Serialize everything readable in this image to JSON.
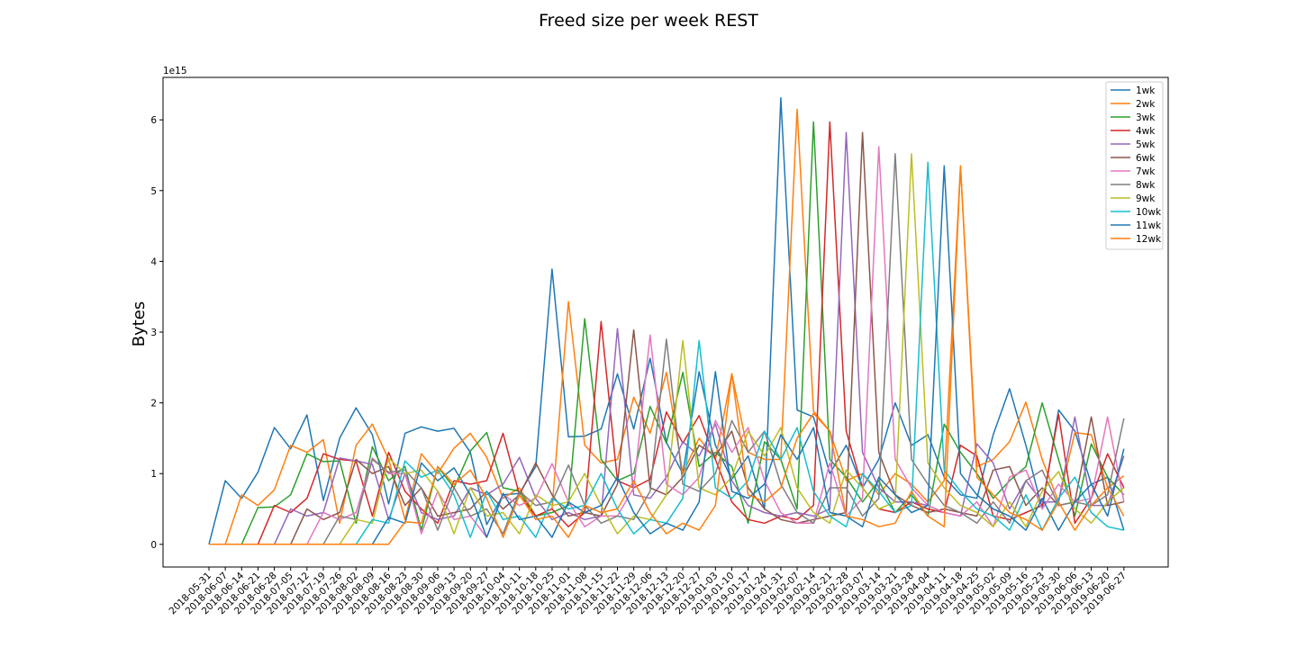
{
  "chart_data": {
    "type": "line",
    "title": "Freed size per week REST",
    "xlabel": "",
    "ylabel": "Bytes",
    "y_scale_label": "1e15",
    "y_scale": 1000000000000000.0,
    "ylim": [
      -0.32,
      6.6
    ],
    "yticks": [
      0,
      1,
      2,
      3,
      4,
      5,
      6
    ],
    "grid": false,
    "legend_position": "top-right",
    "x": [
      "2018-05-31",
      "2018-06-07",
      "2018-06-14",
      "2018-06-21",
      "2018-06-28",
      "2018-07-05",
      "2018-07-12",
      "2018-07-19",
      "2018-07-26",
      "2018-08-02",
      "2018-08-09",
      "2018-08-16",
      "2018-08-23",
      "2018-08-30",
      "2018-09-06",
      "2018-09-13",
      "2018-09-20",
      "2018-09-27",
      "2018-10-04",
      "2018-10-11",
      "2018-10-18",
      "2018-10-25",
      "2018-11-01",
      "2018-11-08",
      "2018-11-15",
      "2018-11-22",
      "2018-11-29",
      "2018-12-06",
      "2018-12-13",
      "2018-12-20",
      "2018-12-27",
      "2019-01-03",
      "2019-01-10",
      "2019-01-17",
      "2019-01-24",
      "2019-01-31",
      "2019-02-07",
      "2019-02-14",
      "2019-02-21",
      "2019-02-28",
      "2019-03-07",
      "2019-03-14",
      "2019-03-21",
      "2019-03-28",
      "2019-04-04",
      "2019-04-11",
      "2019-04-18",
      "2019-04-25",
      "2019-05-02",
      "2019-05-09",
      "2019-05-16",
      "2019-05-23",
      "2019-05-30",
      "2019-06-06",
      "2019-06-13",
      "2019-06-20",
      "2019-06-27"
    ],
    "series": [
      {
        "name": "1wk",
        "color": "#1f77b4",
        "values": [
          0,
          0.9,
          0.65,
          1.02,
          1.65,
          1.35,
          1.83,
          0.62,
          1.5,
          1.93,
          1.55,
          0.57,
          1.57,
          1.66,
          1.6,
          1.64,
          1.3,
          0.28,
          0.7,
          0.72,
          1.1,
          3.89,
          1.52,
          1.53,
          1.63,
          2.41,
          1.63,
          2.63,
          1.44,
          1.0,
          2.44,
          1.4,
          0.92,
          1.25,
          0.5,
          6.31,
          1.9,
          1.8,
          1.0,
          1.4,
          0.8,
          1.2,
          2.0,
          1.4,
          1.55,
          0.95,
          0.7,
          0.65,
          1.55,
          2.2,
          1.4,
          0.5,
          1.9,
          1.6,
          0.85,
          0.95,
          0.2
        ]
      },
      {
        "name": "2wk",
        "color": "#ff7f0e",
        "values": [
          0,
          0,
          0.7,
          0.55,
          0.77,
          1.4,
          1.3,
          1.48,
          0.3,
          1.4,
          1.7,
          1.2,
          0.35,
          1.28,
          1.0,
          1.36,
          1.57,
          1.23,
          0.65,
          0.8,
          0.4,
          0.5,
          3.43,
          1.4,
          1.15,
          1.2,
          2.08,
          1.57,
          2.43,
          1.0,
          1.5,
          1.2,
          2.41,
          1.3,
          1.2,
          1.2,
          6.15,
          1.88,
          1.6,
          0.9,
          1.0,
          0.7,
          1.0,
          0.85,
          0.6,
          0.9,
          5.35,
          1.1,
          1.2,
          1.45,
          2.01,
          1.2,
          0.6,
          1.58,
          1.55,
          0.8,
          0.97
        ]
      },
      {
        "name": "3wk",
        "color": "#2ca02c",
        "values": [
          0,
          0,
          0,
          0.52,
          0.53,
          0.7,
          1.28,
          1.17,
          1.18,
          0.3,
          1.38,
          0.9,
          1.1,
          0.2,
          1.1,
          0.8,
          1.32,
          1.58,
          0.8,
          0.75,
          0.4,
          0.45,
          0.55,
          3.19,
          1.2,
          0.9,
          1.0,
          1.95,
          1.43,
          2.43,
          1.1,
          1.3,
          1.1,
          0.3,
          1.45,
          1.2,
          0.5,
          5.97,
          1.2,
          0.95,
          0.6,
          0.9,
          0.45,
          0.7,
          0.4,
          1.7,
          1.3,
          1.0,
          0.65,
          0.9,
          1.1,
          2.0,
          1.2,
          0.4,
          1.42,
          0.95,
          0.7
        ]
      },
      {
        "name": "4wk",
        "color": "#d62728",
        "values": [
          0,
          0,
          0,
          0,
          0.55,
          0.45,
          0.65,
          1.28,
          1.2,
          1.18,
          0.4,
          1.3,
          0.75,
          0.5,
          0.3,
          0.9,
          0.85,
          0.9,
          1.57,
          0.7,
          0.4,
          0.5,
          0.25,
          0.45,
          3.15,
          0.9,
          0.8,
          0.92,
          1.87,
          1.43,
          1.82,
          1.2,
          0.6,
          0.35,
          0.3,
          0.4,
          0.35,
          0.55,
          5.97,
          1.6,
          0.8,
          0.5,
          0.45,
          0.6,
          0.5,
          0.45,
          1.4,
          1.25,
          0.4,
          0.35,
          0.45,
          0.55,
          1.84,
          0.3,
          0.65,
          1.28,
          0.8
        ]
      },
      {
        "name": "5wk",
        "color": "#9467bd",
        "values": [
          0,
          0,
          0,
          0,
          0,
          0.5,
          0.4,
          0.45,
          1.22,
          1.18,
          1.13,
          0.35,
          1.0,
          0.45,
          0.35,
          0.4,
          0.8,
          0.7,
          0.85,
          1.23,
          0.65,
          0.35,
          0.45,
          0.35,
          0.4,
          3.05,
          0.7,
          0.65,
          0.95,
          1.45,
          1.25,
          1.7,
          0.9,
          0.55,
          0.45,
          0.4,
          0.45,
          0.4,
          0.5,
          5.82,
          1.3,
          0.8,
          0.6,
          0.6,
          0.55,
          0.45,
          0.4,
          1.42,
          1.15,
          0.5,
          0.9,
          0.6,
          0.6,
          1.8,
          0.55,
          0.55,
          1.25
        ]
      },
      {
        "name": "6wk",
        "color": "#8c564b",
        "values": [
          0,
          0,
          0,
          0,
          0,
          0,
          0.5,
          0.35,
          0.45,
          1.2,
          1.0,
          1.1,
          0.55,
          0.8,
          0.4,
          0.45,
          0.5,
          0.75,
          0.5,
          0.7,
          1.15,
          0.7,
          0.4,
          0.45,
          0.4,
          0.85,
          3.03,
          0.8,
          0.7,
          0.95,
          1.4,
          1.25,
          1.6,
          0.8,
          0.5,
          0.35,
          0.3,
          0.35,
          0.4,
          0.45,
          5.82,
          1.3,
          0.7,
          0.55,
          0.45,
          0.5,
          0.45,
          0.4,
          1.05,
          1.1,
          0.55,
          0.8,
          0.55,
          0.6,
          1.8,
          0.55,
          0.6
        ]
      },
      {
        "name": "7wk",
        "color": "#e377c2",
        "values": [
          0,
          0,
          0,
          0,
          0,
          0,
          0,
          0.45,
          0.35,
          0.45,
          1.22,
          1.0,
          1.0,
          0.15,
          0.75,
          0.35,
          0.4,
          0.1,
          0.7,
          0.55,
          0.65,
          1.14,
          0.6,
          0.25,
          0.4,
          0.4,
          0.8,
          2.96,
          0.85,
          0.7,
          0.95,
          1.75,
          1.3,
          1.65,
          0.9,
          0.45,
          0.3,
          0.3,
          1.15,
          0.4,
          0.65,
          5.62,
          1.2,
          0.8,
          0.55,
          0.45,
          0.4,
          0.6,
          0.25,
          0.95,
          1.05,
          0.5,
          0.85,
          0.6,
          0.65,
          1.8,
          0.6
        ]
      },
      {
        "name": "8wk",
        "color": "#7f7f7f",
        "values": [
          0,
          0,
          0,
          0,
          0,
          0,
          0,
          0,
          0.4,
          0.35,
          1.2,
          1.02,
          1.05,
          0.8,
          0.2,
          0.8,
          0.4,
          0.5,
          0.15,
          0.75,
          0.55,
          0.6,
          1.12,
          0.55,
          0.3,
          0.4,
          0.35,
          0.75,
          2.9,
          0.85,
          0.75,
          1.0,
          1.75,
          1.3,
          1.6,
          0.85,
          0.45,
          0.3,
          0.8,
          0.8,
          0.4,
          0.65,
          5.52,
          1.2,
          0.85,
          0.55,
          0.45,
          0.3,
          0.6,
          0.3,
          0.9,
          1.05,
          0.55,
          0.6,
          0.55,
          0.7,
          1.78
        ]
      },
      {
        "name": "9wk",
        "color": "#bcbd22",
        "values": [
          0,
          0,
          0,
          0,
          0,
          0,
          0,
          0,
          0,
          0.35,
          0.3,
          1.22,
          1.0,
          1.05,
          0.75,
          0.15,
          0.8,
          0.4,
          0.45,
          0.15,
          0.7,
          0.55,
          0.6,
          1.0,
          0.55,
          0.15,
          0.4,
          0.35,
          0.7,
          2.88,
          0.8,
          0.7,
          0.95,
          1.6,
          1.25,
          1.65,
          0.8,
          0.45,
          0.3,
          1.05,
          0.8,
          0.5,
          0.6,
          5.52,
          1.15,
          0.8,
          0.55,
          0.45,
          0.25,
          0.6,
          0.25,
          0.75,
          1.03,
          0.5,
          0.3,
          0.6,
          0.8
        ]
      },
      {
        "name": "10wk",
        "color": "#17becf",
        "values": [
          0,
          0,
          0,
          0,
          0,
          0,
          0,
          0,
          0,
          0,
          0.35,
          0.3,
          1.18,
          0.95,
          1.05,
          0.7,
          0.1,
          0.75,
          0.35,
          0.4,
          0.1,
          0.65,
          0.5,
          0.55,
          1.0,
          0.5,
          0.15,
          0.35,
          0.3,
          0.65,
          2.88,
          0.8,
          0.65,
          0.9,
          1.6,
          1.2,
          1.65,
          0.75,
          0.4,
          0.25,
          1.0,
          0.75,
          0.45,
          0.55,
          5.4,
          1.05,
          0.75,
          0.5,
          0.4,
          0.2,
          0.7,
          0.2,
          0.65,
          0.95,
          0.45,
          0.25,
          0.2
        ]
      },
      {
        "name": "11wk",
        "color": "#1f77b4",
        "values": [
          0,
          0,
          0,
          0,
          0,
          0,
          0,
          0,
          0,
          0,
          0,
          0.38,
          0.3,
          1.15,
          0.9,
          1.08,
          0.7,
          0.1,
          0.72,
          0.35,
          0.4,
          0.1,
          0.6,
          0.45,
          0.55,
          0.95,
          0.45,
          0.15,
          0.3,
          0.2,
          0.6,
          2.44,
          0.75,
          0.65,
          0.85,
          1.55,
          1.2,
          1.65,
          0.45,
          0.4,
          0.25,
          0.95,
          0.7,
          0.45,
          0.55,
          5.35,
          1.0,
          0.7,
          0.5,
          0.4,
          0.2,
          0.65,
          0.2,
          0.6,
          0.85,
          0.4,
          1.35
        ]
      },
      {
        "name": "12wk",
        "color": "#ff7f0e",
        "values": [
          0,
          0,
          0,
          0,
          0,
          0,
          0,
          0,
          0,
          0,
          0,
          0,
          0.32,
          0.3,
          1.1,
          0.85,
          1.05,
          0.65,
          0.1,
          0.7,
          0.35,
          0.4,
          0.1,
          0.55,
          0.45,
          0.5,
          0.9,
          0.45,
          0.15,
          0.3,
          0.2,
          0.55,
          2.41,
          0.7,
          0.6,
          0.8,
          1.5,
          1.85,
          1.6,
          0.4,
          0.35,
          0.25,
          0.3,
          0.75,
          0.4,
          0.25,
          5.35,
          0.95,
          0.7,
          0.45,
          0.35,
          0.2,
          0.6,
          0.2,
          0.55,
          0.8,
          0.4
        ]
      }
    ]
  }
}
